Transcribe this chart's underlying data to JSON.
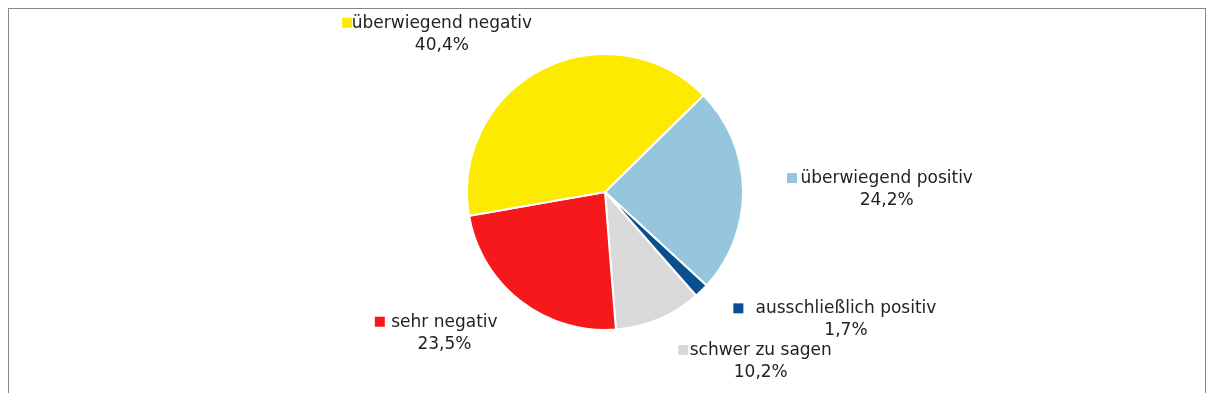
{
  "chart_data": {
    "type": "pie",
    "categories": [
      "überwiegend positiv",
      "ausschließlich positiv",
      "schwer zu sagen",
      "sehr negativ",
      "überwiegend negativ"
    ],
    "values": [
      24.2,
      1.7,
      10.2,
      23.5,
      40.4
    ],
    "colors": [
      "#96c6dd",
      "#0a4f8f",
      "#d9d9d9",
      "#f5191c",
      "#fcea00"
    ],
    "value_labels": [
      "24,2%",
      "1,7%",
      "10,2%",
      "23,5%",
      "40,4%"
    ],
    "legend": "right"
  }
}
